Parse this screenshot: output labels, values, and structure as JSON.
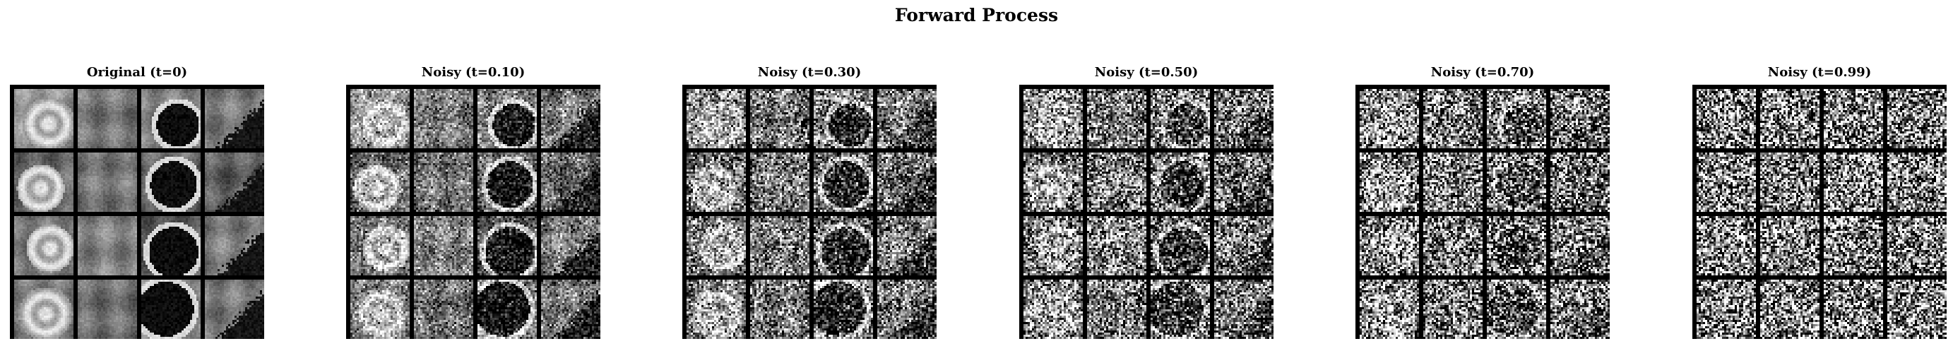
{
  "figure": {
    "title": "Forward Process"
  },
  "panels": [
    {
      "title": "Original (t=0)",
      "t": 0.0
    },
    {
      "title": "Noisy (t=0.10)",
      "t": 0.1
    },
    {
      "title": "Noisy (t=0.30)",
      "t": 0.3
    },
    {
      "title": "Noisy (t=0.50)",
      "t": 0.5
    },
    {
      "title": "Noisy (t=0.70)",
      "t": 0.7
    },
    {
      "title": "Noisy (t=0.99)",
      "t": 0.99
    }
  ]
}
